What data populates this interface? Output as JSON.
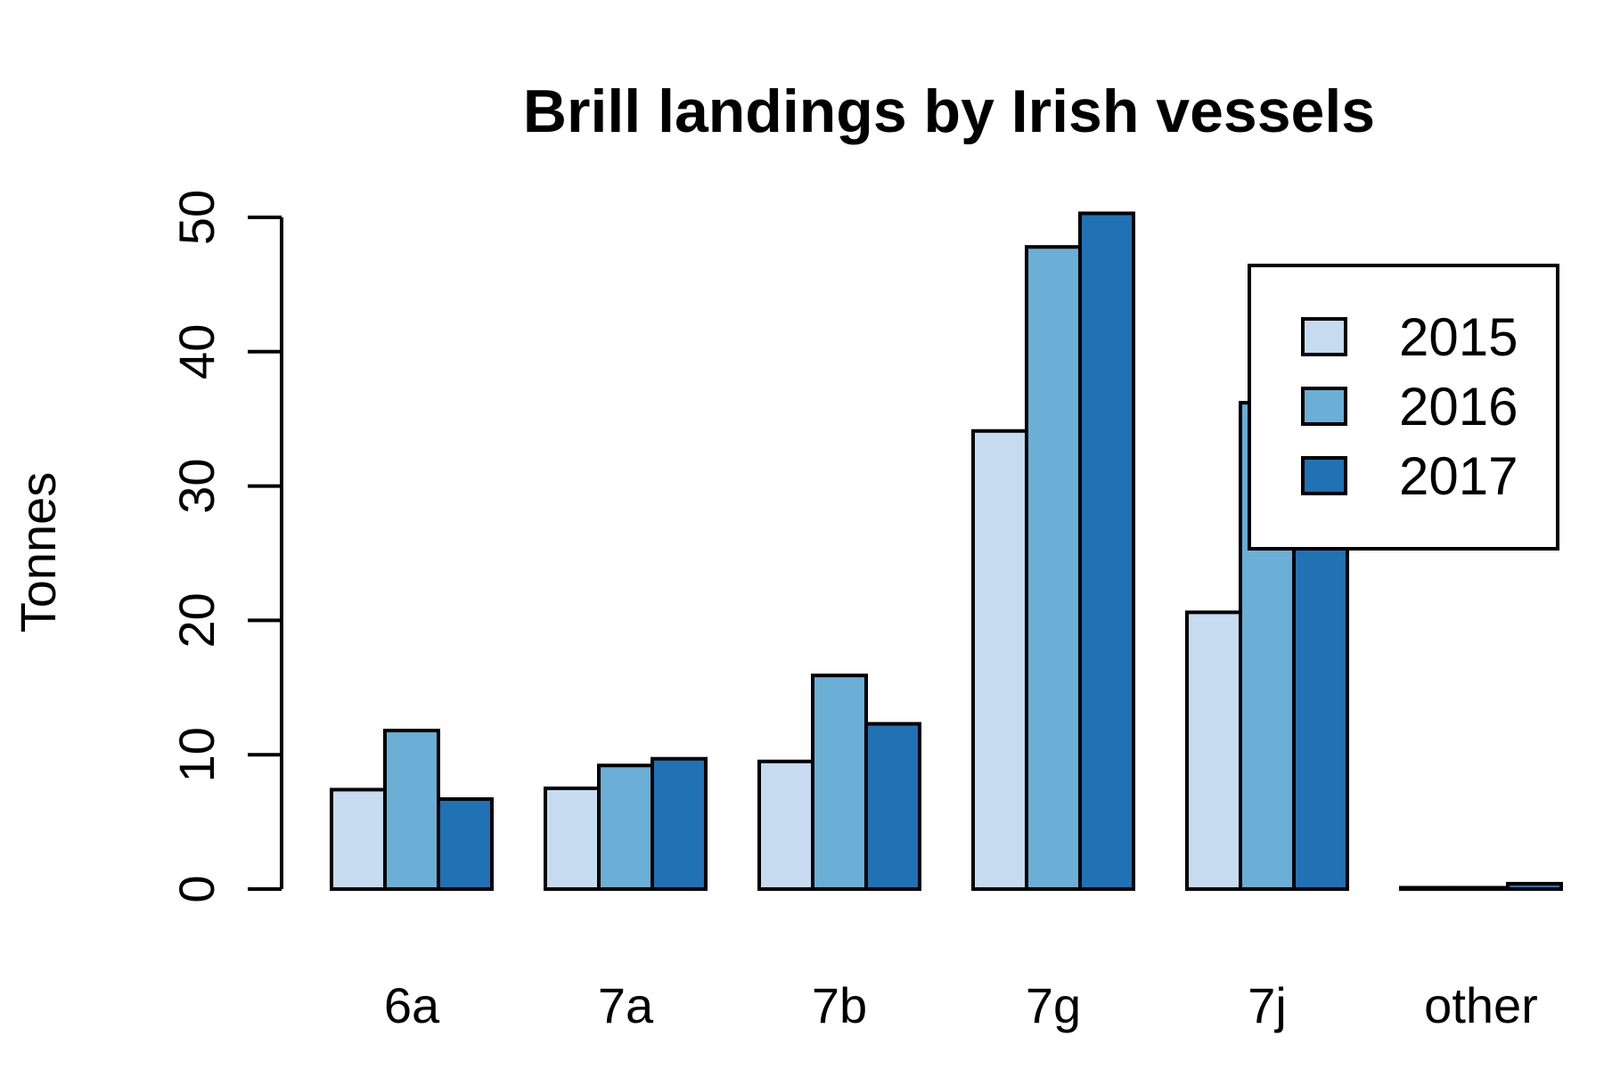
{
  "chart_data": {
    "type": "bar",
    "title": "Brill landings by Irish vessels",
    "xlabel": "",
    "ylabel": "Tonnes",
    "categories": [
      "6a",
      "7a",
      "7b",
      "7g",
      "7j",
      "other"
    ],
    "series": [
      {
        "name": "2015",
        "color": "#c6dbef",
        "values": [
          7.4,
          7.5,
          9.5,
          34.1,
          20.6,
          0.1
        ]
      },
      {
        "name": "2016",
        "color": "#6baed6",
        "values": [
          11.8,
          9.2,
          15.9,
          47.8,
          36.2,
          0.1
        ]
      },
      {
        "name": "2017",
        "color": "#2171b5",
        "values": [
          6.7,
          9.7,
          12.3,
          50.3,
          35.8,
          0.4
        ]
      }
    ],
    "ylim": [
      0,
      50
    ],
    "yticks": [
      0,
      10,
      20,
      30,
      40,
      50
    ],
    "grid": false,
    "legend_position": "top-right"
  }
}
